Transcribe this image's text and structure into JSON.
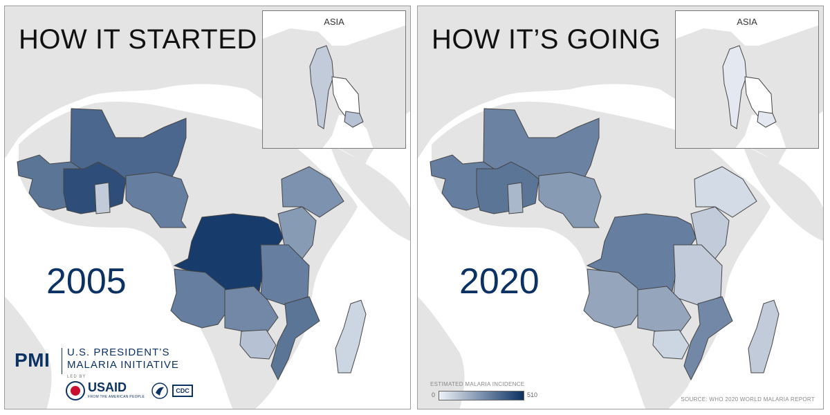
{
  "panels": [
    {
      "title": "HOW IT STARTED",
      "year": "2005",
      "inset_label": "ASIA"
    },
    {
      "title": "HOW IT’S GOING",
      "year": "2020",
      "inset_label": "ASIA"
    }
  ],
  "logos": {
    "pmi_abbr": "PMI",
    "pmi_line1": "U.S. PRESIDENT’S",
    "pmi_line2": "MALARIA INITIATIVE",
    "led_by": "LED BY",
    "usaid": "USAID",
    "usaid_tagline": "FROM THE AMERICAN PEOPLE",
    "cdc": "CDC"
  },
  "legend": {
    "title": "ESTIMATED MALARIA INCIDENCE",
    "min": "0",
    "max": "510",
    "low_color": "#eef2f8",
    "high_color": "#0c3163"
  },
  "source": "SOURCE: WHO 2020 WORLD MALARIA REPORT",
  "colors": {
    "land": "#e4e4e4",
    "ocean": "#ffffff",
    "border": "#444444"
  },
  "regions": {
    "mali_niger_chad": [
      0.72,
      0.58
    ],
    "west_coast": [
      0.65,
      0.6
    ],
    "nigeria_belt": [
      0.85,
      0.65
    ],
    "ghana": [
      0.2,
      0.3
    ],
    "cameroon": [
      0.6,
      0.45
    ],
    "drc": [
      0.95,
      0.6
    ],
    "angola": [
      0.6,
      0.4
    ],
    "east_africa": [
      0.45,
      0.2
    ],
    "tanzania": [
      0.6,
      0.2
    ],
    "mozambique": [
      0.65,
      0.55
    ],
    "zambia_malawi": [
      0.55,
      0.4
    ],
    "zimbabwe": [
      0.25,
      0.15
    ],
    "madagascar": [
      0.15,
      0.2
    ],
    "ethiopia": [
      0.5,
      0.12
    ],
    "myanmar": [
      0.2,
      0.05
    ],
    "cambodia": [
      0.25,
      0.05
    ]
  }
}
